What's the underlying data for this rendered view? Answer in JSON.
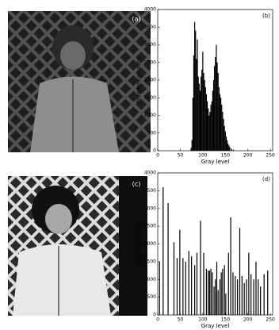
{
  "images": [
    {
      "label": "(a)"
    },
    {
      "label": "(c)"
    }
  ],
  "chart_data": [
    {
      "type": "bar",
      "label": "(b)",
      "xlabel": "Gray level",
      "ylabel": "Frequency count",
      "color": "#000000",
      "x": [
        74,
        76,
        78,
        80,
        82,
        84,
        86,
        88,
        90,
        92,
        94,
        96,
        98,
        100,
        102,
        104,
        106,
        108,
        110,
        112,
        114,
        116,
        118,
        120,
        122,
        124,
        126,
        128,
        130,
        132,
        134,
        136,
        138,
        140,
        142,
        144,
        146,
        148,
        150,
        152,
        154,
        156,
        158,
        160,
        164,
        168
      ],
      "values": [
        80,
        300,
        1500,
        2700,
        3650,
        3400,
        2600,
        3150,
        2100,
        1900,
        1700,
        2100,
        2300,
        2800,
        2200,
        2000,
        1800,
        1600,
        1400,
        1200,
        1000,
        1100,
        1300,
        1400,
        1700,
        2000,
        2400,
        2650,
        3000,
        2500,
        2200,
        1800,
        1600,
        1500,
        1300,
        1100,
        900,
        700,
        550,
        400,
        300,
        200,
        150,
        100,
        60,
        30
      ],
      "xlim": [
        0,
        255
      ],
      "xticks": [
        0,
        50,
        100,
        150,
        200,
        250
      ],
      "ylim": [
        0,
        4000
      ],
      "yticks": [
        0,
        500,
        1000,
        1500,
        2000,
        2500,
        3000,
        3500,
        4000
      ]
    },
    {
      "type": "bar",
      "label": "(d)",
      "xlabel": "Gray level",
      "ylabel": "Frequency count",
      "color": "#000000",
      "x": [
        4,
        12,
        23,
        36,
        43,
        49,
        56,
        62,
        69,
        75,
        82,
        87,
        95,
        102,
        108,
        112,
        115,
        118,
        121,
        125,
        128,
        131,
        134,
        138,
        141,
        144,
        148,
        151,
        157,
        162,
        167,
        172,
        177,
        182,
        187,
        192,
        197,
        202,
        207,
        213,
        218,
        223,
        228,
        236,
        244
      ],
      "values": [
        1500,
        3600,
        3150,
        2050,
        1600,
        2400,
        1600,
        1500,
        1800,
        1650,
        1400,
        1750,
        2650,
        1750,
        1300,
        1250,
        1250,
        1300,
        1200,
        800,
        1000,
        1500,
        700,
        1000,
        1200,
        1300,
        1400,
        600,
        1750,
        2750,
        1200,
        1100,
        1000,
        2450,
        1100,
        900,
        1000,
        1750,
        1150,
        1000,
        1500,
        1000,
        800,
        1150,
        1250
      ],
      "xlim": [
        0,
        255
      ],
      "xticks": [
        0,
        50,
        100,
        150,
        200,
        250
      ],
      "ylim": [
        0,
        4000
      ],
      "yticks": [
        0,
        500,
        1000,
        1500,
        2000,
        2500,
        3000,
        3500,
        4000
      ]
    }
  ]
}
